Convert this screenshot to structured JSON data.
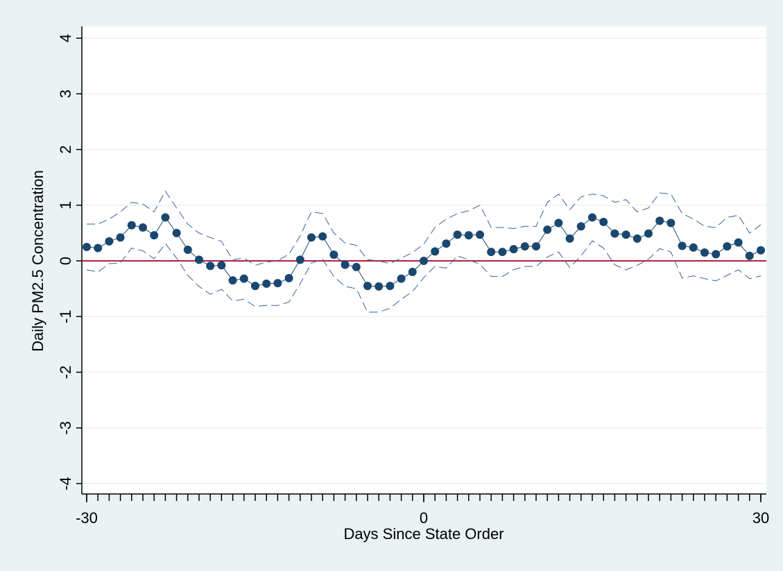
{
  "chart_data": {
    "type": "line",
    "x_label": "Days Since State Order",
    "y_label": "Daily PM2.5 Concentration",
    "x": [
      -30,
      -29,
      -28,
      -27,
      -26,
      -25,
      -24,
      -23,
      -22,
      -21,
      -20,
      -19,
      -18,
      -17,
      -16,
      -15,
      -14,
      -13,
      -12,
      -11,
      -10,
      -9,
      -8,
      -7,
      -6,
      -5,
      -4,
      -3,
      -2,
      -1,
      0,
      1,
      2,
      3,
      4,
      5,
      6,
      7,
      8,
      9,
      10,
      11,
      12,
      13,
      14,
      15,
      16,
      17,
      18,
      19,
      20,
      21,
      22,
      23,
      24,
      25,
      26,
      27,
      28,
      29,
      30
    ],
    "values": [
      0.25,
      0.23,
      0.35,
      0.42,
      0.64,
      0.6,
      0.46,
      0.78,
      0.5,
      0.2,
      0.02,
      -0.09,
      -0.08,
      -0.35,
      -0.32,
      -0.45,
      -0.41,
      -0.4,
      -0.31,
      0.02,
      0.42,
      0.44,
      0.11,
      -0.07,
      -0.11,
      -0.45,
      -0.46,
      -0.45,
      -0.32,
      -0.2,
      0,
      0.17,
      0.31,
      0.47,
      0.46,
      0.47,
      0.16,
      0.16,
      0.21,
      0.26,
      0.26,
      0.56,
      0.68,
      0.4,
      0.62,
      0.78,
      0.7,
      0.49,
      0.47,
      0.4,
      0.49,
      0.72,
      0.68,
      0.27,
      0.24,
      0.15,
      0.12,
      0.26,
      0.33,
      0.09,
      0.19
    ],
    "ci_upper": [
      0.66,
      0.66,
      0.75,
      0.88,
      1.05,
      1.02,
      0.88,
      1.25,
      0.95,
      0.66,
      0.5,
      0.42,
      0.35,
      0.02,
      0.05,
      -0.08,
      -0.02,
      0,
      0.12,
      0.45,
      0.88,
      0.85,
      0.5,
      0.32,
      0.28,
      0.02,
      0,
      -0.05,
      0.05,
      0.15,
      0.3,
      0.6,
      0.75,
      0.85,
      0.9,
      1.0,
      0.6,
      0.6,
      0.58,
      0.62,
      0.62,
      1.05,
      1.2,
      0.92,
      1.15,
      1.2,
      1.17,
      1.05,
      1.1,
      0.88,
      0.95,
      1.22,
      1.2,
      0.85,
      0.75,
      0.62,
      0.6,
      0.78,
      0.82,
      0.5,
      0.65
    ],
    "ci_lower": [
      -0.16,
      -0.2,
      -0.05,
      -0.04,
      0.23,
      0.18,
      0.04,
      0.31,
      0.05,
      -0.26,
      -0.46,
      -0.6,
      -0.51,
      -0.72,
      -0.69,
      -0.82,
      -0.8,
      -0.8,
      -0.74,
      -0.41,
      -0.04,
      0.03,
      -0.28,
      -0.46,
      -0.5,
      -0.92,
      -0.92,
      -0.85,
      -0.69,
      -0.55,
      -0.3,
      -0.1,
      -0.13,
      0.09,
      0.02,
      -0.06,
      -0.28,
      -0.28,
      -0.16,
      -0.1,
      -0.1,
      0.07,
      0.16,
      -0.12,
      0.09,
      0.36,
      0.23,
      -0.07,
      -0.16,
      -0.08,
      0.03,
      0.22,
      0.16,
      -0.31,
      -0.27,
      -0.32,
      -0.36,
      -0.26,
      -0.16,
      -0.32,
      -0.27
    ],
    "color": "#1a476f",
    "ci_color": "#3b5f96",
    "ref_line": {
      "value": 0,
      "color": "#b02040"
    },
    "xlim": [
      -30,
      30
    ],
    "ylim": [
      -4,
      4
    ],
    "xticks": [
      -30,
      0,
      30
    ],
    "yticks": [
      -4,
      -3,
      -2,
      -1,
      0,
      1,
      2,
      3,
      4
    ],
    "grid": true
  }
}
